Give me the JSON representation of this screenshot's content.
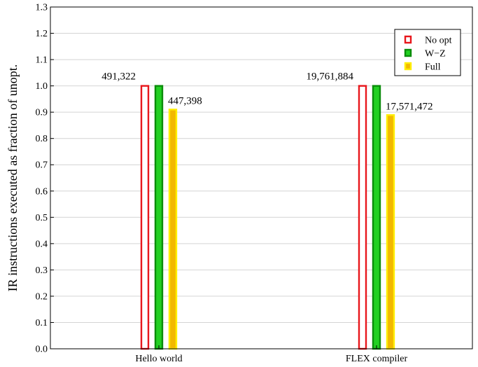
{
  "chart_data": {
    "type": "bar",
    "categories": [
      "Hello world",
      "FLEX compiler"
    ],
    "series": [
      {
        "name": "No opt",
        "values": [
          1.0,
          1.0
        ],
        "stroke": "#e8161b",
        "fill": "#ffffff"
      },
      {
        "name": "W−Z",
        "values": [
          1.0,
          1.0
        ],
        "stroke": "#0a8c0a",
        "fill": "#22d022"
      },
      {
        "name": "Full",
        "values": [
          0.91,
          0.889
        ],
        "stroke": "#ffee00",
        "fill": "#f2b800"
      }
    ],
    "annotations": [
      {
        "category": 0,
        "series": 0,
        "text": "491,322"
      },
      {
        "category": 0,
        "series": 2,
        "text": "447,398"
      },
      {
        "category": 1,
        "series": 0,
        "text": "19,761,884"
      },
      {
        "category": 1,
        "series": 2,
        "text": "17,571,472"
      }
    ],
    "title": "",
    "xlabel": "",
    "ylabel": "IR instructions executed as fraction of unopt.",
    "ylim": [
      0,
      1.3
    ],
    "yticks": [
      "0.0",
      "0.1",
      "0.2",
      "0.3",
      "0.4",
      "0.5",
      "0.6",
      "0.7",
      "0.8",
      "0.9",
      "1.0",
      "1.1",
      "1.2",
      "1.3"
    ],
    "grid": true,
    "legend": "top-right"
  }
}
